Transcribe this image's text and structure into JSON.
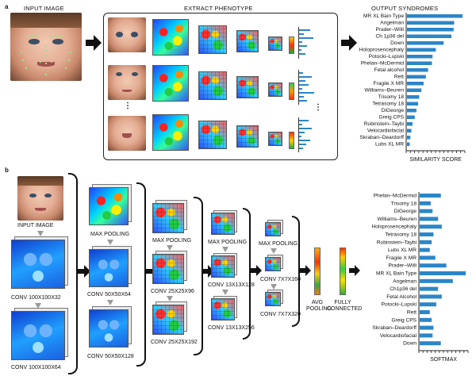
{
  "panel_a": {
    "letter": "a",
    "input_label": "INPUT IMAGE",
    "extract_label": "EXTRACT PHENOTYPE",
    "output_label": "OUTPUT SYNDROMES",
    "similarity_label": "SIMILARITY SCORE",
    "syndromes": [
      {
        "name": "MR XL Bain Type",
        "score": 1.0
      },
      {
        "name": "Angelman",
        "score": 0.85
      },
      {
        "name": "Prader–Willi",
        "score": 0.84
      },
      {
        "name": "Ch 1p36 del",
        "score": 0.8
      },
      {
        "name": "Down",
        "score": 0.66
      },
      {
        "name": "Holoprosencephaly",
        "score": 0.52
      },
      {
        "name": "Potocki–Lupski",
        "score": 0.46
      },
      {
        "name": "Phelan–McDermid",
        "score": 0.45
      },
      {
        "name": "Fetal alcohol",
        "score": 0.38
      },
      {
        "name": "Rett",
        "score": 0.34
      },
      {
        "name": "Fragile X MR",
        "score": 0.3
      },
      {
        "name": "Williams–Beuren",
        "score": 0.26
      },
      {
        "name": "Trisomy 18",
        "score": 0.22
      },
      {
        "name": "Tetrasomy 18",
        "score": 0.2
      },
      {
        "name": "DiGeorge",
        "score": 0.17
      },
      {
        "name": "Greig CPS",
        "score": 0.14
      },
      {
        "name": "Rubinstein–Taybi",
        "score": 0.1
      },
      {
        "name": "Velocardiofacial",
        "score": 0.08
      },
      {
        "name": "Skraban–Deardorff",
        "score": 0.06
      },
      {
        "name": "Lubs XL MR",
        "score": 0.05
      }
    ]
  },
  "panel_b": {
    "letter": "b",
    "input_label": "INPUT IMAGE",
    "conv1a": "CONV 100x100x32",
    "conv1b": "CONV 100x100x64",
    "pool1": "MAX POOLING",
    "conv2a": "CONV 50x50x64",
    "conv2b": "CONV 50x50x128",
    "pool2": "MAX POOLING",
    "conv3a": "CONV 25x25x96",
    "conv3b": "CONV 25x25x192",
    "pool3": "MAX POOLING",
    "conv4a": "CONV 13x13x128",
    "conv4b": "CONV 13x13x256",
    "pool4": "MAX POOLING",
    "conv5a": "CONV 7x7x160",
    "conv5b": "CONV 7x7x320",
    "avg_pool": "AVG POOLING",
    "fully_connected": "FULLY CONNECTED",
    "softmax_label": "SOFTMAX",
    "softmax": [
      {
        "name": "Phelan–McDermid",
        "score": 0.46
      },
      {
        "name": "Trisomy 18",
        "score": 0.24
      },
      {
        "name": "DiGeorge",
        "score": 0.28
      },
      {
        "name": "Williams–Beuren",
        "score": 0.4
      },
      {
        "name": "Holoprosencephaly",
        "score": 0.48
      },
      {
        "name": "Tetrasomy 18",
        "score": 0.3
      },
      {
        "name": "Rubinstein–Taybi",
        "score": 0.26
      },
      {
        "name": "Lubs XL MR",
        "score": 0.22
      },
      {
        "name": "Fragile X MR",
        "score": 0.34
      },
      {
        "name": "Prader–Willi",
        "score": 0.58
      },
      {
        "name": "MR XL Bain Type",
        "score": 1.0
      },
      {
        "name": "Angelman",
        "score": 0.72
      },
      {
        "name": "Ch1p36 del",
        "score": 0.4
      },
      {
        "name": "Fetal Alcohol",
        "score": 0.48
      },
      {
        "name": "Potocki–Lupski",
        "score": 0.36
      },
      {
        "name": "Rett",
        "score": 0.22
      },
      {
        "name": "Greig CPS",
        "score": 0.26
      },
      {
        "name": "Skraban–Deardorff",
        "score": 0.3
      },
      {
        "name": "Velocardiofacial",
        "score": 0.28
      },
      {
        "name": "Down",
        "score": 0.46
      }
    ]
  },
  "colors": {
    "bar": "#2b86c8",
    "arrow": "#111111",
    "gray_arrow": "#9a9a9a"
  }
}
